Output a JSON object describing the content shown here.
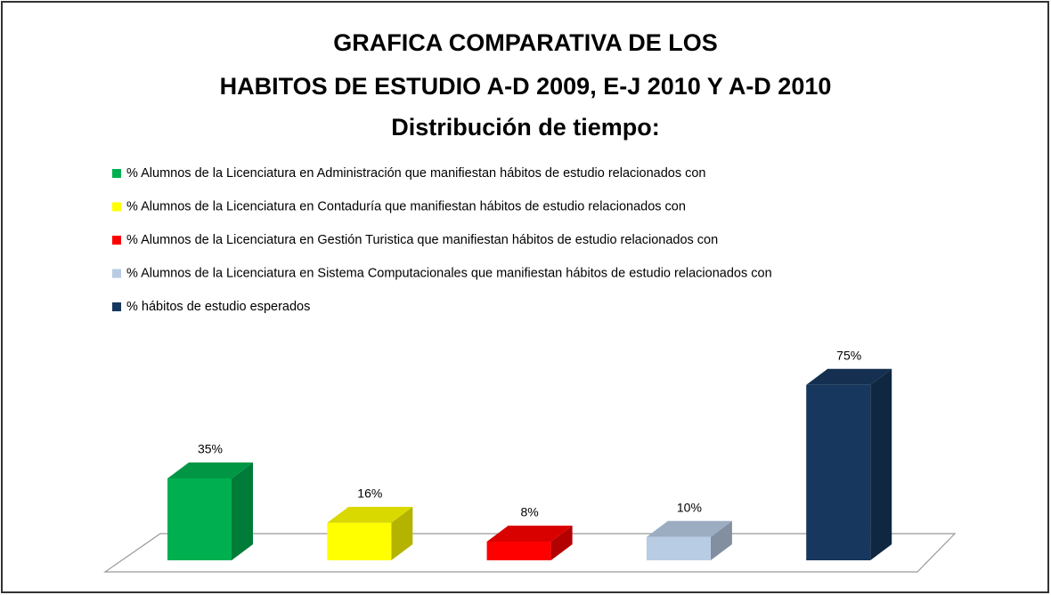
{
  "chart_data": {
    "type": "bar3d",
    "title": [
      "GRAFICA COMPARATIVA DE LOS",
      "HABITOS DE ESTUDIO A-D 2009, E-J 2010 Y A-D 2010",
      "Distribución de tiempo:"
    ],
    "series": [
      {
        "name": "% Alumnos de la Licenciatura en Administración que manifiestan hábitos de estudio relacionados con",
        "color": "#00b050",
        "values": [
          35
        ],
        "value_labels": [
          "35%"
        ]
      },
      {
        "name": "% Alumnos de la Licenciatura en Contaduría que manifiestan hábitos de estudio relacionados con",
        "color": "#ffff00",
        "values": [
          16
        ],
        "value_labels": [
          "16%"
        ]
      },
      {
        "name": "% Alumnos de la Licenciatura en Gestión Turistica que manifiestan hábitos de estudio relacionados con",
        "color": "#ff0000",
        "values": [
          8
        ],
        "value_labels": [
          "8%"
        ]
      },
      {
        "name": "% Alumnos de la Licenciatura en Sistema Computacionales que manifiestan hábitos de estudio relacionados con",
        "color": "#b8cce4",
        "values": [
          10
        ],
        "value_labels": [
          "10%"
        ]
      },
      {
        "name": "% hábitos de estudio  esperados",
        "color": "#17375e",
        "values": [
          75
        ],
        "value_labels": [
          "75%"
        ]
      }
    ],
    "legend": "top-left"
  }
}
